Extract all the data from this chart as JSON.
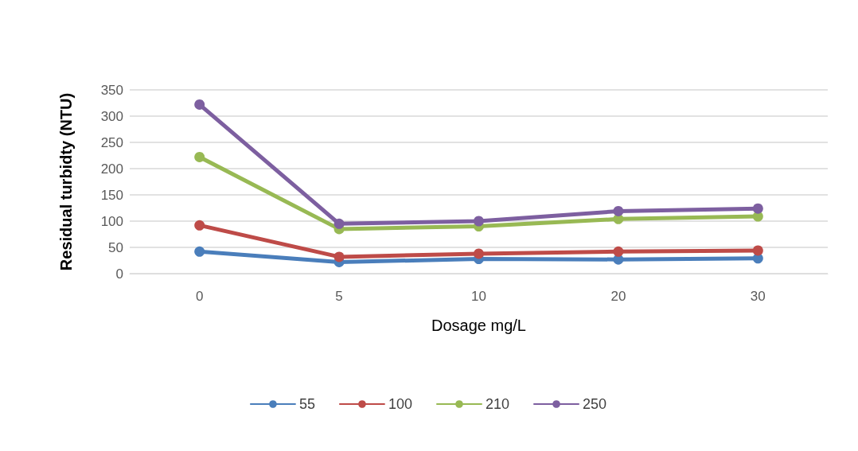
{
  "chart_data": {
    "type": "line",
    "xlabel": "Dosage mg/L",
    "ylabel": "Residual turbidty (NTU)",
    "categories": [
      "0",
      "5",
      "10",
      "20",
      "30"
    ],
    "series": [
      {
        "name": "55",
        "color": "#4a7ebb",
        "values": [
          42,
          22,
          28,
          27,
          29
        ]
      },
      {
        "name": "100",
        "color": "#be4b48",
        "values": [
          92,
          32,
          38,
          42,
          44
        ]
      },
      {
        "name": "210",
        "color": "#98b954",
        "values": [
          222,
          85,
          90,
          104,
          109
        ]
      },
      {
        "name": "250",
        "color": "#7d5fa0",
        "values": [
          322,
          95,
          100,
          119,
          124
        ]
      }
    ],
    "ylim": [
      0,
      350
    ],
    "yticks": [
      0,
      50,
      100,
      150,
      200,
      250,
      300,
      350
    ],
    "grid": "y",
    "legend": "bottom",
    "marker": "circle",
    "line_style": "solid"
  }
}
